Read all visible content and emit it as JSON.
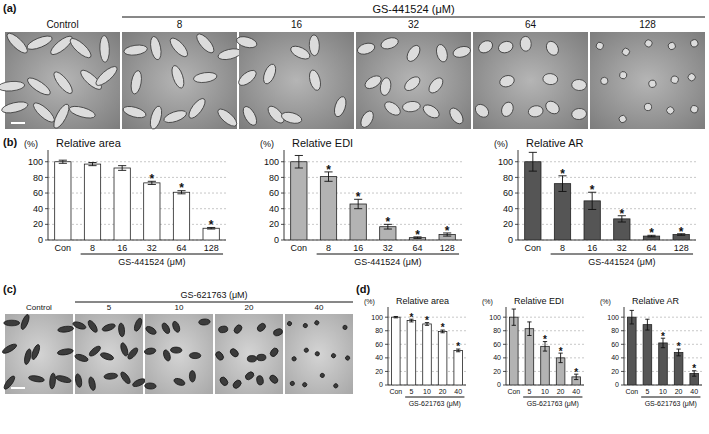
{
  "panel_labels": [
    "(a)",
    "(b)",
    "(c)",
    "(d)"
  ],
  "micrographs": [
    {
      "treatment": "GS-441524 (μM)",
      "labels": [
        "Control",
        "8",
        "16",
        "32",
        "64",
        "128"
      ]
    },
    {
      "treatment": "GS-621763 (μM)",
      "labels": [
        "Control",
        "5",
        "10",
        "20",
        "40"
      ]
    }
  ],
  "chart_data": [
    {
      "type": "bar",
      "title": "Relative area",
      "y_unit": "(%)",
      "x_label": "GS-441524 (μM)",
      "categories": [
        "Con",
        "8",
        "16",
        "32",
        "64",
        "128"
      ],
      "values": [
        100,
        97,
        92,
        73,
        61,
        15
      ],
      "errors": [
        2,
        2,
        3,
        2,
        2,
        1
      ],
      "significance": [
        null,
        null,
        null,
        "*",
        "*",
        "*"
      ],
      "color": "#ffffff",
      "ylim": [
        0,
        115
      ],
      "yticks": [
        0,
        20,
        40,
        60,
        80,
        100
      ],
      "grid": true
    },
    {
      "type": "bar",
      "title": "Relative EDI",
      "y_unit": "(%)",
      "x_label": "GS-441524 (μM)",
      "categories": [
        "Con",
        "8",
        "16",
        "32",
        "64",
        "128"
      ],
      "values": [
        100,
        81,
        46,
        17,
        3,
        7
      ],
      "errors": [
        8,
        6,
        6,
        3,
        1,
        2
      ],
      "significance": [
        null,
        "*",
        "*",
        "*",
        "*",
        "*"
      ],
      "color": "#b3b3b3",
      "ylim": [
        0,
        115
      ],
      "yticks": [
        0,
        20,
        40,
        60,
        80,
        100
      ],
      "grid": true
    },
    {
      "type": "bar",
      "title": "Relative AR",
      "y_unit": "(%)",
      "x_label": "GS-441524 (μM)",
      "categories": [
        "Con",
        "8",
        "16",
        "32",
        "64",
        "128"
      ],
      "values": [
        100,
        72,
        50,
        27,
        5,
        7
      ],
      "errors": [
        12,
        10,
        11,
        4,
        1,
        1
      ],
      "significance": [
        null,
        "*",
        "*",
        "*",
        "*",
        "*"
      ],
      "color": "#555555",
      "ylim": [
        0,
        115
      ],
      "yticks": [
        0,
        20,
        40,
        60,
        80,
        100
      ],
      "grid": true
    },
    {
      "type": "bar",
      "title": "Relative area",
      "y_unit": "(%)",
      "x_label": "GS-621763 (μM)",
      "categories": [
        "Con",
        "5",
        "10",
        "20",
        "40"
      ],
      "values": [
        100,
        95,
        90,
        79,
        51
      ],
      "errors": [
        1,
        2,
        2,
        2,
        2
      ],
      "significance": [
        null,
        "*",
        "*",
        "*",
        "*"
      ],
      "color": "#ffffff",
      "ylim": [
        0,
        115
      ],
      "yticks": [
        0,
        20,
        40,
        60,
        80,
        100
      ],
      "grid": true
    },
    {
      "type": "bar",
      "title": "Relative EDI",
      "y_unit": "(%)",
      "x_label": "GS-621763 (μM)",
      "categories": [
        "Con",
        "5",
        "10",
        "20",
        "40"
      ],
      "values": [
        100,
        83,
        57,
        40,
        12
      ],
      "errors": [
        12,
        10,
        7,
        7,
        4
      ],
      "significance": [
        null,
        null,
        "*",
        "*",
        "*"
      ],
      "color": "#b3b3b3",
      "ylim": [
        0,
        115
      ],
      "yticks": [
        0,
        20,
        40,
        60,
        80,
        100
      ],
      "grid": true
    },
    {
      "type": "bar",
      "title": "Relative AR",
      "y_unit": "(%)",
      "x_label": "GS-621763 (μM)",
      "categories": [
        "Con",
        "5",
        "10",
        "20",
        "40"
      ],
      "values": [
        100,
        89,
        62,
        48,
        17
      ],
      "errors": [
        10,
        8,
        7,
        5,
        4
      ],
      "significance": [
        null,
        null,
        "*",
        "*",
        "*"
      ],
      "color": "#555555",
      "ylim": [
        0,
        115
      ],
      "yticks": [
        0,
        20,
        40,
        60,
        80,
        100
      ],
      "grid": true
    }
  ]
}
